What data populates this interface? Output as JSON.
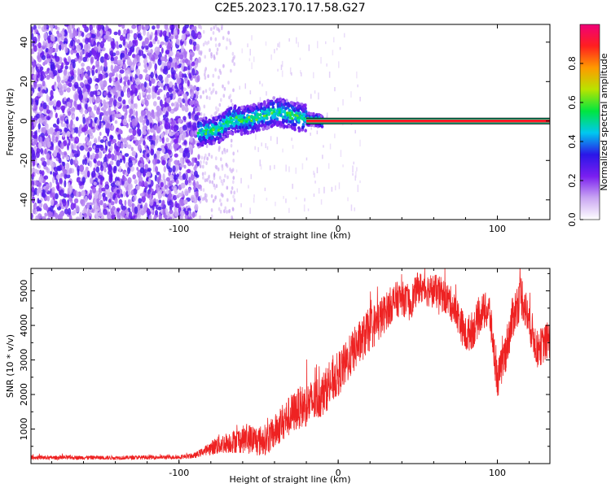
{
  "figure": {
    "title": "C2E5.2023.170.17.58.G27"
  },
  "chart_data": [
    {
      "type": "heatmap",
      "name": "spectrogram",
      "xlabel": "Height of straight line (km)",
      "ylabel": "Frequency (Hz)",
      "xlim": [
        -193,
        133
      ],
      "ylim": [
        -50,
        49
      ],
      "x_ticks": [
        -100,
        0,
        100
      ],
      "x_tick_labels": [
        "-100",
        "0",
        "100"
      ],
      "y_ticks": [
        40,
        20,
        0,
        -20,
        -40
      ],
      "y_tick_labels": [
        "40",
        "20",
        "0",
        "-20",
        "-40"
      ],
      "colorbar": {
        "label": "Normalized spectral amplitude",
        "range": [
          0,
          1
        ],
        "ticks": [
          0.0,
          0.2,
          0.4,
          0.6,
          0.8
        ],
        "tick_labels": [
          "0.0",
          "0.2",
          "0.4",
          "0.6",
          "0.8"
        ],
        "colormap": [
          "#ffffff",
          "#c9a6f2",
          "#7a1ef0",
          "#2a16e8",
          "#00c8f0",
          "#00e640",
          "#b8e400",
          "#ff9a00",
          "#ff1f1f",
          "#f00078"
        ]
      },
      "regions": [
        {
          "desc": "broadband noise",
          "x_range": [
            -193,
            -87
          ],
          "freq_range": [
            -50,
            49
          ],
          "amplitude": 0.15
        },
        {
          "desc": "sparse noise",
          "x_range": [
            -87,
            -65
          ],
          "freq_range": [
            -50,
            49
          ],
          "amplitude": 0.05
        },
        {
          "desc": "carrier onset",
          "x_range": [
            -88,
            -25
          ],
          "freq_range": [
            -8,
            10
          ],
          "amplitude": 0.35
        },
        {
          "desc": "stable carrier",
          "x_range": [
            -20,
            133
          ],
          "frequency": 0,
          "amplitude": 1.0
        }
      ],
      "carrier_center_points": [
        [
          -88,
          -6
        ],
        [
          -80,
          -5
        ],
        [
          -75,
          -4
        ],
        [
          -70,
          -1
        ],
        [
          -65,
          1
        ],
        [
          -60,
          0
        ],
        [
          -55,
          1
        ],
        [
          -50,
          2
        ],
        [
          -45,
          3
        ],
        [
          -40,
          5
        ],
        [
          -35,
          4
        ],
        [
          -30,
          3
        ],
        [
          -25,
          2
        ],
        [
          -20,
          1
        ],
        [
          -15,
          0.5
        ],
        [
          -10,
          0
        ],
        [
          0,
          0
        ],
        [
          133,
          0
        ]
      ]
    },
    {
      "type": "line",
      "name": "snr",
      "xlabel": "Height of straight line (km)",
      "ylabel": "SNR (10 * v/v)",
      "color": "#ee2222",
      "xlim": [
        -193,
        133
      ],
      "ylim": [
        0,
        5650
      ],
      "x_ticks": [
        -100,
        0,
        100
      ],
      "x_tick_labels": [
        "-100",
        "0",
        "100"
      ],
      "y_ticks": [
        5000,
        4000,
        3000,
        2000,
        1000
      ],
      "y_tick_labels": [
        "5000",
        "4000",
        "3000",
        "2000",
        "1000"
      ],
      "x": [
        -193,
        -180,
        -160,
        -140,
        -120,
        -100,
        -90,
        -85,
        -80,
        -75,
        -70,
        -65,
        -60,
        -55,
        -50,
        -45,
        -40,
        -35,
        -30,
        -25,
        -20,
        -15,
        -10,
        -5,
        0,
        5,
        10,
        15,
        20,
        25,
        30,
        35,
        40,
        45,
        50,
        55,
        60,
        65,
        70,
        75,
        80,
        85,
        90,
        95,
        100,
        105,
        110,
        115,
        120,
        125,
        133
      ],
      "y": [
        180,
        170,
        175,
        170,
        180,
        190,
        230,
        350,
        450,
        550,
        600,
        650,
        700,
        720,
        650,
        700,
        900,
        1200,
        1400,
        1600,
        1700,
        1800,
        2000,
        2300,
        2600,
        2900,
        3300,
        3600,
        3900,
        4100,
        4400,
        4700,
        4800,
        4600,
        5100,
        5050,
        5000,
        4900,
        4700,
        4300,
        3700,
        3900,
        4400,
        4400,
        2400,
        3200,
        4300,
        4900,
        4100,
        3300,
        3600
      ],
      "noise_band": [
        60,
        60,
        60,
        60,
        60,
        60,
        80,
        120,
        200,
        300,
        300,
        350,
        400,
        450,
        450,
        450,
        500,
        550,
        600,
        600,
        650,
        650,
        650,
        650,
        650,
        650,
        650,
        650,
        650,
        650,
        550,
        550,
        500,
        500,
        450,
        500,
        500,
        500,
        500,
        500,
        550,
        550,
        550,
        550,
        550,
        600,
        650,
        650,
        600,
        550,
        550
      ]
    }
  ]
}
